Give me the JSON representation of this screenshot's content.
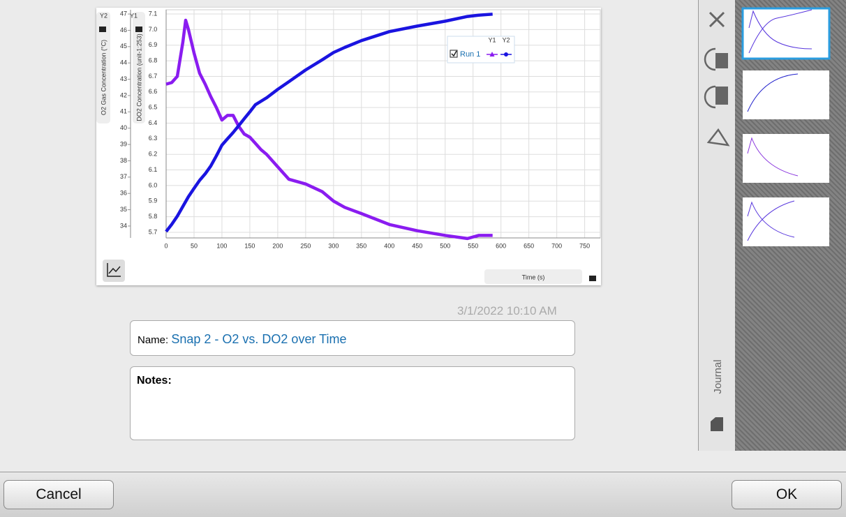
{
  "chart_data": {
    "type": "line",
    "xlabel": "Time (s)",
    "ylabel": "DO2 Concentration (unit-1:253)",
    "y2label": "O2 Gas Concentration (°C)",
    "ylabel_tag": "Y1",
    "y2label_tag": "Y2",
    "x": [
      0,
      10,
      20,
      30,
      35,
      40,
      50,
      60,
      70,
      80,
      90,
      100,
      110,
      120,
      130,
      140,
      150,
      160,
      170,
      180,
      200,
      220,
      250,
      280,
      300,
      320,
      350,
      400,
      450,
      500,
      540,
      560,
      585
    ],
    "series": [
      {
        "color": "#8a1cf0",
        "axis": "y",
        "values": [
          6.65,
          6.66,
          6.7,
          6.92,
          7.06,
          7.0,
          6.85,
          6.72,
          6.65,
          6.57,
          6.5,
          6.42,
          6.45,
          6.45,
          6.38,
          6.33,
          6.31,
          6.27,
          6.23,
          6.2,
          6.12,
          6.04,
          6.01,
          5.96,
          5.9,
          5.86,
          5.82,
          5.75,
          5.71,
          5.68,
          5.66,
          5.68,
          5.68
        ]
      },
      {
        "color": "#1a14e0",
        "axis": "y2",
        "values": [
          33.66,
          34.1,
          34.6,
          35.2,
          35.5,
          35.8,
          36.31,
          36.8,
          37.2,
          37.68,
          38.3,
          38.96,
          39.35,
          39.73,
          40.15,
          40.58,
          41.0,
          41.44,
          41.65,
          41.86,
          42.38,
          42.85,
          43.57,
          44.2,
          44.64,
          44.95,
          45.37,
          45.92,
          46.26,
          46.56,
          46.85,
          46.93,
          46.99
        ]
      }
    ],
    "legend": {
      "name": "Run 1",
      "columns": [
        "Y1",
        "Y2"
      ]
    },
    "xlim": [
      0,
      778
    ],
    "xticks": [
      0,
      50,
      100,
      150,
      200,
      250,
      300,
      350,
      400,
      450,
      500,
      550,
      600,
      650,
      700,
      750
    ],
    "ylim": [
      5.664,
      7.127
    ],
    "yticks": [
      5.7,
      5.8,
      5.9,
      {
        "value": 6,
        "label": "6.0"
      },
      6.1,
      6.2,
      6.3,
      6.4,
      6.5,
      6.6,
      6.7,
      6.8,
      6.9,
      {
        "value": 7,
        "label": "7.0"
      },
      7.1
    ],
    "y2lim": [
      33.27,
      47.26
    ],
    "y2ticks": [
      34,
      35,
      36,
      37,
      38,
      39,
      40,
      41,
      42,
      43,
      44,
      45,
      46,
      47
    ],
    "grid": true
  },
  "snapshot": {
    "timestamp": "3/1/2022 10:10 AM",
    "name_label": "Name:",
    "name": "Snap 2 - O2 vs. DO2 over Time",
    "notes_label": "Notes:"
  },
  "sidebar": {
    "journal": "Journal"
  },
  "buttons": {
    "cancel": "Cancel",
    "ok": "OK"
  }
}
